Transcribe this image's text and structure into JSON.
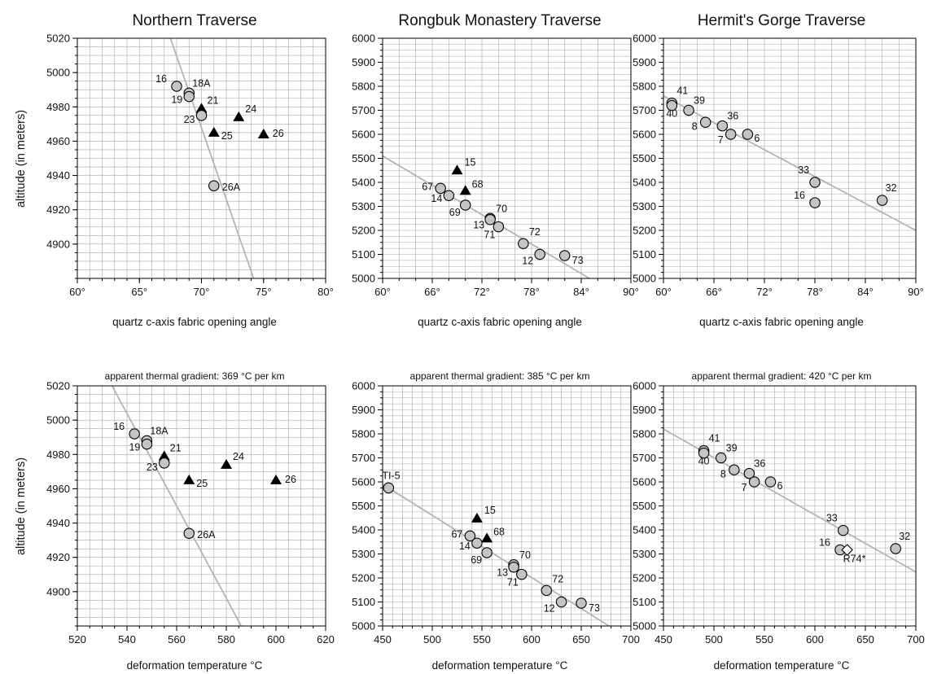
{
  "figure": {
    "ylabel": "altitude (in meters)"
  },
  "chart_data": [
    {
      "type": "scatter",
      "title": "Northern Traverse",
      "subtitle": "",
      "xlabel": "quartz c-axis fabric opening angle",
      "xlim": [
        60,
        80
      ],
      "xticks": [
        60,
        65,
        70,
        75,
        80
      ],
      "xtick_labels": [
        "60°",
        "65°",
        "70°",
        "75°",
        "80°"
      ],
      "ylim": [
        4880,
        5020
      ],
      "yticks": [
        4900,
        4920,
        4940,
        4960,
        4980,
        5000,
        5020
      ],
      "ytick_labels": [
        "4900",
        "4920",
        "4940",
        "4960",
        "4980",
        "5000",
        "5020"
      ],
      "grid": true,
      "trend_line": [
        [
          67.5,
          5020
        ],
        [
          74.2,
          4880
        ]
      ],
      "points": [
        {
          "label": "16",
          "x": 68,
          "y": 4992,
          "marker": "circle"
        },
        {
          "label": "18A",
          "x": 69,
          "y": 4988,
          "marker": "circle"
        },
        {
          "label": "19",
          "x": 69,
          "y": 4986,
          "marker": "circle"
        },
        {
          "label": "21",
          "x": 70,
          "y": 4979,
          "marker": "triangle"
        },
        {
          "label": "23",
          "x": 70,
          "y": 4975,
          "marker": "circle"
        },
        {
          "label": "24",
          "x": 73,
          "y": 4974,
          "marker": "triangle"
        },
        {
          "label": "25",
          "x": 71,
          "y": 4965,
          "marker": "triangle"
        },
        {
          "label": "26",
          "x": 75,
          "y": 4964,
          "marker": "triangle"
        },
        {
          "label": "26A",
          "x": 71,
          "y": 4934,
          "marker": "circle"
        }
      ]
    },
    {
      "type": "scatter",
      "title": "Rongbuk Monastery Traverse",
      "subtitle": "",
      "xlabel": "quartz c-axis fabric opening angle",
      "xlim": [
        60,
        90
      ],
      "xticks": [
        60,
        66,
        72,
        78,
        84,
        90
      ],
      "xtick_labels": [
        "60°",
        "66°",
        "72°",
        "78°",
        "84°",
        "90°"
      ],
      "ylim": [
        5000,
        6000
      ],
      "yticks": [
        5000,
        5100,
        5200,
        5300,
        5400,
        5500,
        5600,
        5700,
        5800,
        5900,
        6000
      ],
      "ytick_labels": [
        "5000",
        "5100",
        "5200",
        "5300",
        "5400",
        "5500",
        "5600",
        "5700",
        "5800",
        "5900",
        "6000"
      ],
      "grid": true,
      "trend_line": [
        [
          60,
          5510
        ],
        [
          85,
          5000
        ]
      ],
      "points": [
        {
          "label": "15",
          "x": 69,
          "y": 5450,
          "marker": "triangle"
        },
        {
          "label": "67",
          "x": 67,
          "y": 5375,
          "marker": "circle"
        },
        {
          "label": "68",
          "x": 70,
          "y": 5365,
          "marker": "triangle"
        },
        {
          "label": "14",
          "x": 68,
          "y": 5345,
          "marker": "circle"
        },
        {
          "label": "69",
          "x": 70,
          "y": 5305,
          "marker": "circle"
        },
        {
          "label": "70",
          "x": 73,
          "y": 5250,
          "marker": "circle"
        },
        {
          "label": "13",
          "x": 73,
          "y": 5245,
          "marker": "circle"
        },
        {
          "label": "71",
          "x": 74,
          "y": 5215,
          "marker": "circle"
        },
        {
          "label": "72",
          "x": 77,
          "y": 5145,
          "marker": "circle"
        },
        {
          "label": "12",
          "x": 79,
          "y": 5100,
          "marker": "circle"
        },
        {
          "label": "73",
          "x": 82,
          "y": 5095,
          "marker": "circle"
        }
      ]
    },
    {
      "type": "scatter",
      "title": "Hermit's Gorge Traverse",
      "subtitle": "",
      "xlabel": "quartz c-axis fabric opening angle",
      "xlim": [
        60,
        90
      ],
      "xticks": [
        60,
        66,
        72,
        78,
        84,
        90
      ],
      "xtick_labels": [
        "60°",
        "66°",
        "72°",
        "78°",
        "84°",
        "90°"
      ],
      "ylim": [
        5000,
        6000
      ],
      "yticks": [
        5000,
        5100,
        5200,
        5300,
        5400,
        5500,
        5600,
        5700,
        5800,
        5900,
        6000
      ],
      "ytick_labels": [
        "5000",
        "5100",
        "5200",
        "5300",
        "5400",
        "5500",
        "5600",
        "5700",
        "5800",
        "5900",
        "6000"
      ],
      "grid": true,
      "trend_line": [
        [
          60,
          5760
        ],
        [
          90,
          5200
        ]
      ],
      "points": [
        {
          "label": "41",
          "x": 61,
          "y": 5730,
          "marker": "circle"
        },
        {
          "label": "40",
          "x": 61,
          "y": 5720,
          "marker": "circle"
        },
        {
          "label": "39",
          "x": 63,
          "y": 5700,
          "marker": "circle"
        },
        {
          "label": "8",
          "x": 65,
          "y": 5650,
          "marker": "circle"
        },
        {
          "label": "36",
          "x": 67,
          "y": 5635,
          "marker": "circle"
        },
        {
          "label": "7",
          "x": 68,
          "y": 5600,
          "marker": "circle"
        },
        {
          "label": "6",
          "x": 70,
          "y": 5600,
          "marker": "circle"
        },
        {
          "label": "33",
          "x": 78,
          "y": 5400,
          "marker": "circle"
        },
        {
          "label": "16",
          "x": 78,
          "y": 5315,
          "marker": "circle"
        },
        {
          "label": "32",
          "x": 86,
          "y": 5325,
          "marker": "circle"
        }
      ]
    },
    {
      "type": "scatter",
      "title": "",
      "subtitle": "apparent thermal gradient:  369 °C per km",
      "xlabel": "deformation temperature °C",
      "xlim": [
        520,
        620
      ],
      "xticks": [
        520,
        540,
        560,
        580,
        600,
        620
      ],
      "xtick_labels": [
        "520",
        "540",
        "560",
        "580",
        "600",
        "620"
      ],
      "ylim": [
        4880,
        5020
      ],
      "yticks": [
        4900,
        4920,
        4940,
        4960,
        4980,
        5000,
        5020
      ],
      "ytick_labels": [
        "4900",
        "4920",
        "4940",
        "4960",
        "4980",
        "5000",
        "5020"
      ],
      "grid": true,
      "trend_line": [
        [
          534,
          5020
        ],
        [
          586,
          4880
        ]
      ],
      "points": [
        {
          "label": "16",
          "x": 543,
          "y": 4992,
          "marker": "circle"
        },
        {
          "label": "18A",
          "x": 548,
          "y": 4988,
          "marker": "circle"
        },
        {
          "label": "19",
          "x": 548,
          "y": 4986,
          "marker": "circle"
        },
        {
          "label": "21",
          "x": 555,
          "y": 4979,
          "marker": "triangle"
        },
        {
          "label": "23",
          "x": 555,
          "y": 4975,
          "marker": "circle"
        },
        {
          "label": "24",
          "x": 580,
          "y": 4974,
          "marker": "triangle"
        },
        {
          "label": "25",
          "x": 565,
          "y": 4965,
          "marker": "triangle"
        },
        {
          "label": "26",
          "x": 600,
          "y": 4965,
          "marker": "triangle"
        },
        {
          "label": "26A",
          "x": 565,
          "y": 4934,
          "marker": "circle"
        }
      ]
    },
    {
      "type": "scatter",
      "title": "",
      "subtitle": "apparent thermal gradient:  385 °C per km",
      "xlabel": "deformation temperature °C",
      "xlim": [
        450,
        700
      ],
      "xticks": [
        450,
        500,
        550,
        600,
        650,
        700
      ],
      "xtick_labels": [
        "450",
        "500",
        "550",
        "600",
        "650",
        "700"
      ],
      "ylim": [
        5000,
        6000
      ],
      "yticks": [
        5000,
        5100,
        5200,
        5300,
        5400,
        5500,
        5600,
        5700,
        5800,
        5900,
        6000
      ],
      "ytick_labels": [
        "5000",
        "5100",
        "5200",
        "5300",
        "5400",
        "5500",
        "5600",
        "5700",
        "5800",
        "5900",
        "6000"
      ],
      "grid": true,
      "trend_line": [
        [
          450,
          5590
        ],
        [
          678,
          5000
        ]
      ],
      "points": [
        {
          "label": "TI-5",
          "x": 456,
          "y": 5575,
          "marker": "circle"
        },
        {
          "label": "15",
          "x": 545,
          "y": 5448,
          "marker": "triangle"
        },
        {
          "label": "67",
          "x": 538,
          "y": 5375,
          "marker": "circle"
        },
        {
          "label": "68",
          "x": 555,
          "y": 5365,
          "marker": "triangle"
        },
        {
          "label": "14",
          "x": 545,
          "y": 5345,
          "marker": "circle"
        },
        {
          "label": "69",
          "x": 555,
          "y": 5305,
          "marker": "circle"
        },
        {
          "label": "70",
          "x": 582,
          "y": 5255,
          "marker": "circle"
        },
        {
          "label": "13",
          "x": 582,
          "y": 5245,
          "marker": "circle"
        },
        {
          "label": "71",
          "x": 590,
          "y": 5215,
          "marker": "circle"
        },
        {
          "label": "72",
          "x": 615,
          "y": 5148,
          "marker": "circle"
        },
        {
          "label": "12",
          "x": 630,
          "y": 5100,
          "marker": "circle"
        },
        {
          "label": "73",
          "x": 650,
          "y": 5095,
          "marker": "circle"
        }
      ]
    },
    {
      "type": "scatter",
      "title": "",
      "subtitle": "apparent thermal gradient:  420 °C per km",
      "xlabel": "deformation temperature °C",
      "xlim": [
        450,
        700
      ],
      "xticks": [
        450,
        500,
        550,
        600,
        650,
        700
      ],
      "xtick_labels": [
        "450",
        "500",
        "550",
        "600",
        "650",
        "700"
      ],
      "ylim": [
        5000,
        6000
      ],
      "yticks": [
        5000,
        5100,
        5200,
        5300,
        5400,
        5500,
        5600,
        5700,
        5800,
        5900,
        6000
      ],
      "ytick_labels": [
        "5000",
        "5100",
        "5200",
        "5300",
        "5400",
        "5500",
        "5600",
        "5700",
        "5800",
        "5900",
        "6000"
      ],
      "grid": true,
      "trend_line": [
        [
          450,
          5820
        ],
        [
          700,
          5225
        ]
      ],
      "points": [
        {
          "label": "41",
          "x": 490,
          "y": 5730,
          "marker": "circle"
        },
        {
          "label": "40",
          "x": 490,
          "y": 5720,
          "marker": "circle"
        },
        {
          "label": "39",
          "x": 507,
          "y": 5700,
          "marker": "circle"
        },
        {
          "label": "8",
          "x": 520,
          "y": 5650,
          "marker": "circle"
        },
        {
          "label": "36",
          "x": 535,
          "y": 5635,
          "marker": "circle"
        },
        {
          "label": "7",
          "x": 540,
          "y": 5600,
          "marker": "circle"
        },
        {
          "label": "6",
          "x": 556,
          "y": 5600,
          "marker": "circle"
        },
        {
          "label": "33",
          "x": 628,
          "y": 5398,
          "marker": "circle"
        },
        {
          "label": "16",
          "x": 625,
          "y": 5317,
          "marker": "circle"
        },
        {
          "label": "R74*",
          "x": 632,
          "y": 5317,
          "marker": "diamond"
        },
        {
          "label": "32",
          "x": 680,
          "y": 5322,
          "marker": "circle"
        }
      ]
    }
  ]
}
